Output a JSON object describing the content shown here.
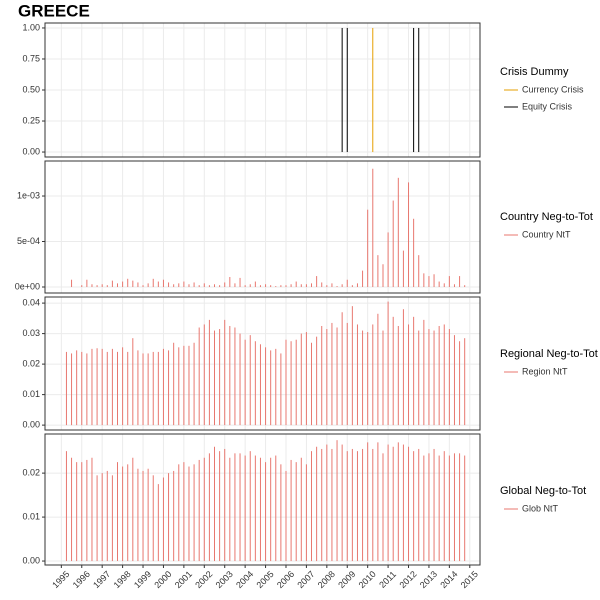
{
  "chart_data": [
    {
      "type": "spike",
      "title": "GREECE",
      "legend_title": "Crisis Dummy",
      "xlim": [
        1994.2,
        2015.5
      ],
      "xticks": [
        1995,
        1996,
        1997,
        1998,
        1999,
        2000,
        2001,
        2002,
        2003,
        2004,
        2005,
        2006,
        2007,
        2008,
        2009,
        2010,
        2011,
        2012,
        2013,
        2014,
        2015
      ],
      "ylim": [
        -0.04,
        1.04
      ],
      "yticks": [
        {
          "value": 0,
          "label": "0.00"
        },
        {
          "value": 0.25,
          "label": "0.25"
        },
        {
          "value": 0.5,
          "label": "0.50"
        },
        {
          "value": 0.75,
          "label": "0.75"
        },
        {
          "value": 1,
          "label": "1.00"
        }
      ],
      "grid": true,
      "series": [
        {
          "name": "Currency Crisis",
          "color": "#e69f00",
          "x": [
            2010.25
          ],
          "values": [
            1
          ]
        },
        {
          "name": "Equity Crisis",
          "color": "#000000",
          "x": [
            2008.75,
            2009,
            2012.25,
            2012.5
          ],
          "values": [
            1,
            1,
            1,
            1
          ]
        }
      ]
    },
    {
      "type": "spike",
      "legend_title": "Country Neg-to-Tot",
      "xlim": [
        1994.2,
        2015.5
      ],
      "xticks": [
        1995,
        1996,
        1997,
        1998,
        1999,
        2000,
        2001,
        2002,
        2003,
        2004,
        2005,
        2006,
        2007,
        2008,
        2009,
        2010,
        2011,
        2012,
        2013,
        2014,
        2015
      ],
      "ylim": [
        -6.6e-05,
        0.001385
      ],
      "yticks": [
        {
          "value": 0,
          "label": "0e+00"
        },
        {
          "value": 0.0005,
          "label": "5e-04"
        },
        {
          "value": 0.001,
          "label": "1e-03"
        }
      ],
      "grid": true,
      "series": [
        {
          "name": "Country NtT",
          "color": "#e8776f",
          "x": [
            1995.25,
            1995.5,
            1995.75,
            1996,
            1996.25,
            1996.5,
            1996.75,
            1997,
            1997.25,
            1997.5,
            1997.75,
            1998,
            1998.25,
            1998.5,
            1998.75,
            1999,
            1999.25,
            1999.5,
            1999.75,
            2000,
            2000.25,
            2000.5,
            2000.75,
            2001,
            2001.25,
            2001.5,
            2001.75,
            2002,
            2002.25,
            2002.5,
            2002.75,
            2003,
            2003.25,
            2003.5,
            2003.75,
            2004,
            2004.25,
            2004.5,
            2004.75,
            2005,
            2005.25,
            2005.5,
            2005.75,
            2006,
            2006.25,
            2006.5,
            2006.75,
            2007,
            2007.25,
            2007.5,
            2007.75,
            2008,
            2008.25,
            2008.5,
            2008.75,
            2009,
            2009.25,
            2009.5,
            2009.75,
            2010,
            2010.25,
            2010.5,
            2010.75,
            2011,
            2011.25,
            2011.5,
            2011.75,
            2012,
            2012.25,
            2012.5,
            2012.75,
            2013,
            2013.25,
            2013.5,
            2013.75,
            2014,
            2014.25,
            2014.5,
            2014.75
          ],
          "values": [
            0,
            8e-05,
            0,
            2e-05,
            8e-05,
            3e-05,
            2e-05,
            3e-05,
            2e-05,
            7e-05,
            4e-05,
            6e-05,
            9e-05,
            7e-05,
            5e-05,
            2e-05,
            4e-05,
            9e-05,
            6e-05,
            8e-05,
            5e-05,
            3e-05,
            4e-05,
            6e-05,
            3e-05,
            5e-05,
            2e-05,
            4e-05,
            2e-05,
            3e-05,
            2e-05,
            5e-05,
            0.00011,
            4e-05,
            0.0001,
            2e-05,
            3e-05,
            6e-05,
            2e-05,
            3e-05,
            2e-05,
            1e-05,
            2e-05,
            2e-05,
            3e-05,
            6e-05,
            3e-05,
            3e-05,
            4e-05,
            0.00012,
            5e-05,
            2e-05,
            4e-05,
            1e-05,
            3e-05,
            8e-05,
            2e-05,
            4e-05,
            0.00018,
            0.00085,
            0.0013,
            0.00035,
            0.00025,
            0.0006,
            0.00095,
            0.0012,
            0.0004,
            0.00115,
            0.00075,
            0.00035,
            0.00015,
            0.00012,
            0.00014,
            6e-05,
            4e-05,
            0.00012,
            3e-05,
            0.00012,
            2e-05
          ]
        }
      ]
    },
    {
      "type": "spike",
      "legend_title": "Regional Neg-to-Tot",
      "xlim": [
        1994.2,
        2015.5
      ],
      "xticks": [
        1995,
        1996,
        1997,
        1998,
        1999,
        2000,
        2001,
        2002,
        2003,
        2004,
        2005,
        2006,
        2007,
        2008,
        2009,
        2010,
        2011,
        2012,
        2013,
        2014,
        2015
      ],
      "ylim": [
        -0.0016,
        0.042
      ],
      "yticks": [
        {
          "value": 0,
          "label": "0.00"
        },
        0.01,
        0.02,
        0.03,
        0.04
      ],
      "grid": true,
      "series": [
        {
          "name": "Region NtT",
          "color": "#e8776f",
          "x": [
            1995.25,
            1995.5,
            1995.75,
            1996,
            1996.25,
            1996.5,
            1996.75,
            1997,
            1997.25,
            1997.5,
            1997.75,
            1998,
            1998.25,
            1998.5,
            1998.75,
            1999,
            1999.25,
            1999.5,
            1999.75,
            2000,
            2000.25,
            2000.5,
            2000.75,
            2001,
            2001.25,
            2001.5,
            2001.75,
            2002,
            2002.25,
            2002.5,
            2002.75,
            2003,
            2003.25,
            2003.5,
            2003.75,
            2004,
            2004.25,
            2004.5,
            2004.75,
            2005,
            2005.25,
            2005.5,
            2005.75,
            2006,
            2006.25,
            2006.5,
            2006.75,
            2007,
            2007.25,
            2007.5,
            2007.75,
            2008,
            2008.25,
            2008.5,
            2008.75,
            2009,
            2009.25,
            2009.5,
            2009.75,
            2010,
            2010.25,
            2010.5,
            2010.75,
            2011,
            2011.25,
            2011.5,
            2011.75,
            2012,
            2012.25,
            2012.5,
            2012.75,
            2013,
            2013.25,
            2013.5,
            2013.75,
            2014,
            2014.25,
            2014.5,
            2014.75
          ],
          "values": [
            0.024,
            0.0235,
            0.0245,
            0.024,
            0.0235,
            0.025,
            0.0252,
            0.025,
            0.024,
            0.025,
            0.024,
            0.0255,
            0.024,
            0.0285,
            0.0245,
            0.0235,
            0.0235,
            0.024,
            0.024,
            0.025,
            0.0245,
            0.027,
            0.0255,
            0.026,
            0.026,
            0.027,
            0.032,
            0.033,
            0.0345,
            0.031,
            0.0315,
            0.0345,
            0.0325,
            0.032,
            0.03,
            0.028,
            0.0295,
            0.0275,
            0.0265,
            0.0255,
            0.0245,
            0.025,
            0.0235,
            0.028,
            0.0275,
            0.028,
            0.03,
            0.0305,
            0.027,
            0.029,
            0.0325,
            0.0315,
            0.0335,
            0.032,
            0.037,
            0.0335,
            0.039,
            0.033,
            0.031,
            0.0305,
            0.033,
            0.0365,
            0.031,
            0.0405,
            0.0355,
            0.0325,
            0.038,
            0.033,
            0.0355,
            0.031,
            0.0345,
            0.0315,
            0.031,
            0.0325,
            0.033,
            0.0315,
            0.0295,
            0.0275,
            0.0285
          ]
        }
      ]
    },
    {
      "type": "spike",
      "legend_title": "Global Neg-to-Tot",
      "xlim": [
        1994.2,
        2015.5
      ],
      "xticks": [
        1995,
        1996,
        1997,
        1998,
        1999,
        2000,
        2001,
        2002,
        2003,
        2004,
        2005,
        2006,
        2007,
        2008,
        2009,
        2010,
        2011,
        2012,
        2013,
        2014,
        2015
      ],
      "ylim": [
        -0.0009,
        0.0289
      ],
      "yticks": [
        {
          "value": 0,
          "label": "0.00"
        },
        0.01,
        0.02
      ],
      "grid": true,
      "series": [
        {
          "name": "Glob NtT",
          "color": "#e8776f",
          "x": [
            1995.25,
            1995.5,
            1995.75,
            1996,
            1996.25,
            1996.5,
            1996.75,
            1997,
            1997.25,
            1997.5,
            1997.75,
            1998,
            1998.25,
            1998.5,
            1998.75,
            1999,
            1999.25,
            1999.5,
            1999.75,
            2000,
            2000.25,
            2000.5,
            2000.75,
            2001,
            2001.25,
            2001.5,
            2001.75,
            2002,
            2002.25,
            2002.5,
            2002.75,
            2003,
            2003.25,
            2003.5,
            2003.75,
            2004,
            2004.25,
            2004.5,
            2004.75,
            2005,
            2005.25,
            2005.5,
            2005.75,
            2006,
            2006.25,
            2006.5,
            2006.75,
            2007,
            2007.25,
            2007.5,
            2007.75,
            2008,
            2008.25,
            2008.5,
            2008.75,
            2009,
            2009.25,
            2009.5,
            2009.75,
            2010,
            2010.25,
            2010.5,
            2010.75,
            2011,
            2011.25,
            2011.5,
            2011.75,
            2012,
            2012.25,
            2012.5,
            2012.75,
            2013,
            2013.25,
            2013.5,
            2013.75,
            2014,
            2014.25,
            2014.5,
            2014.75
          ],
          "values": [
            0.025,
            0.0235,
            0.0225,
            0.0225,
            0.023,
            0.0235,
            0.0195,
            0.02,
            0.0205,
            0.0195,
            0.0225,
            0.0215,
            0.022,
            0.0235,
            0.021,
            0.0205,
            0.021,
            0.0195,
            0.0175,
            0.019,
            0.02,
            0.0205,
            0.022,
            0.0225,
            0.0215,
            0.022,
            0.023,
            0.0235,
            0.0245,
            0.026,
            0.025,
            0.0255,
            0.0235,
            0.0245,
            0.0245,
            0.024,
            0.025,
            0.024,
            0.0235,
            0.0225,
            0.0235,
            0.024,
            0.022,
            0.0205,
            0.023,
            0.0225,
            0.0235,
            0.022,
            0.025,
            0.026,
            0.0255,
            0.0265,
            0.0255,
            0.0275,
            0.0265,
            0.025,
            0.0255,
            0.025,
            0.0255,
            0.027,
            0.0255,
            0.027,
            0.0245,
            0.0265,
            0.026,
            0.027,
            0.0265,
            0.026,
            0.025,
            0.0255,
            0.024,
            0.0245,
            0.0255,
            0.024,
            0.025,
            0.024,
            0.0245,
            0.0245,
            0.024
          ]
        }
      ]
    }
  ]
}
